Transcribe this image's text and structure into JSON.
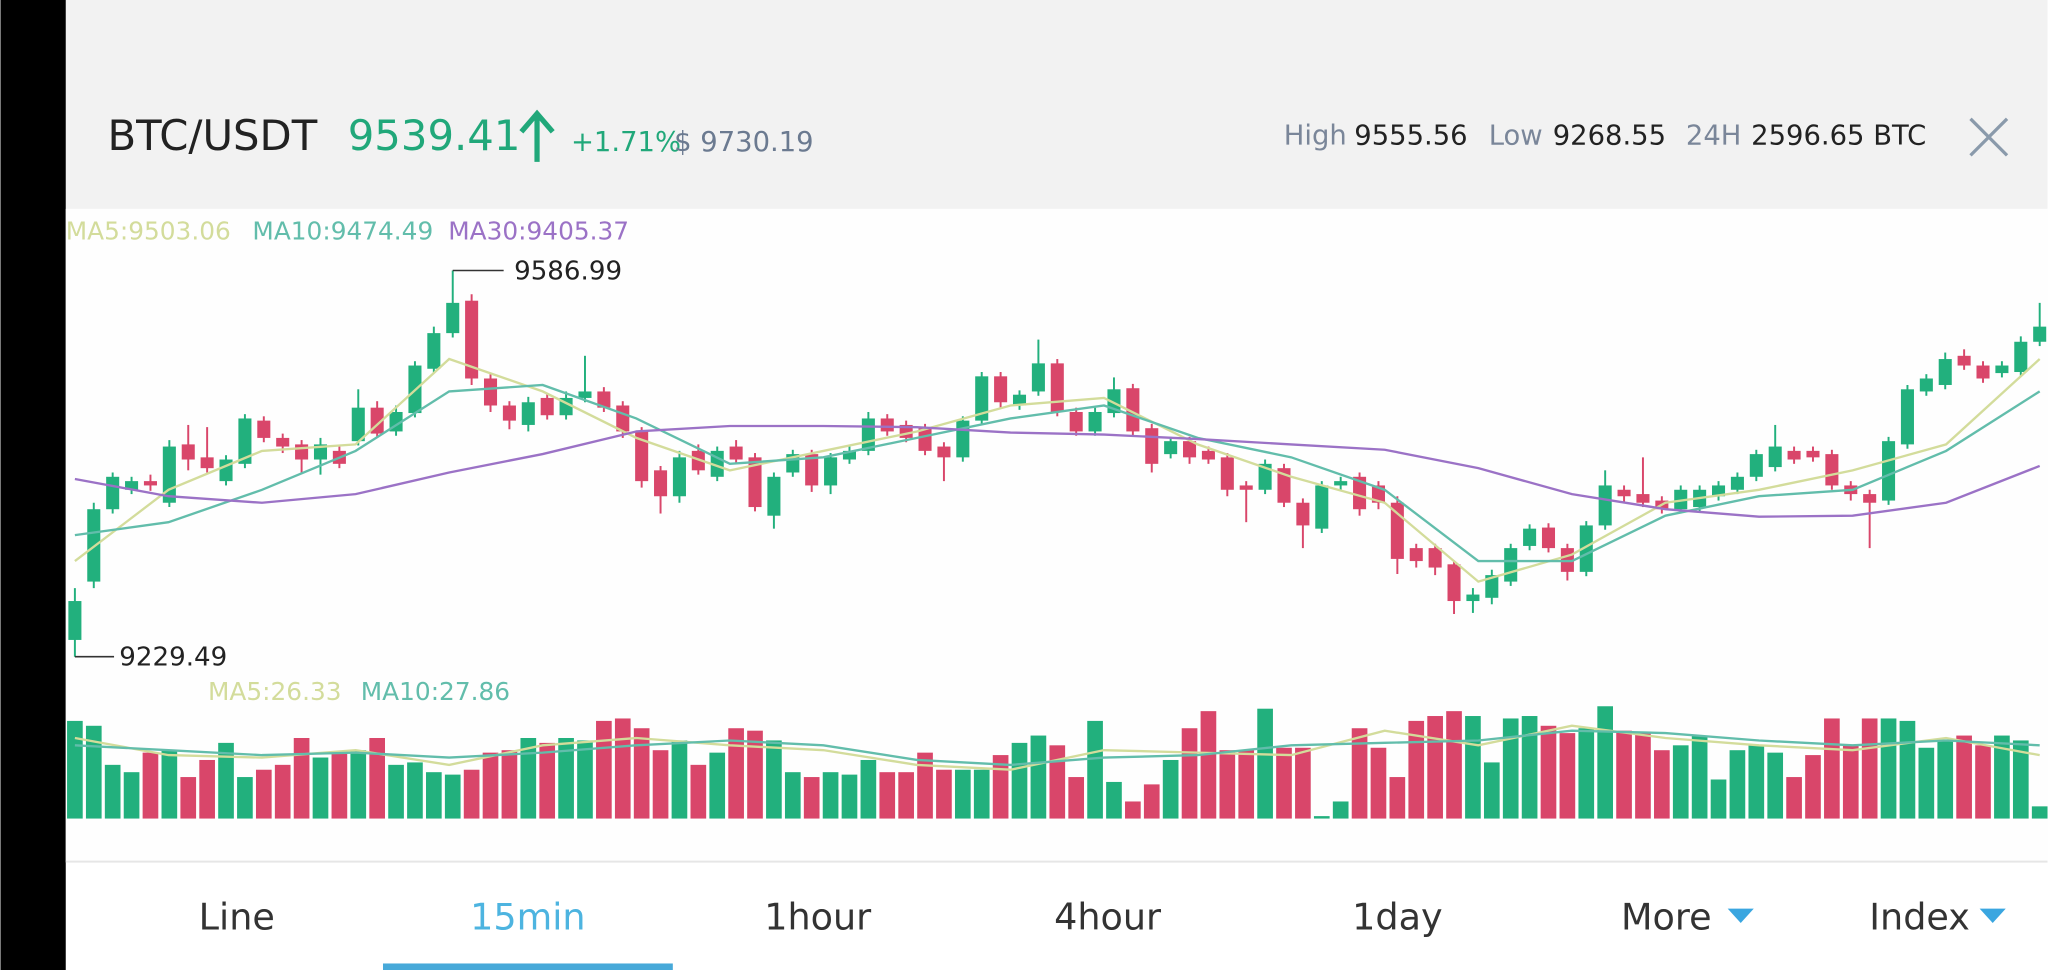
{
  "header": {
    "pair": "BTC/USDT",
    "price": "9539.41",
    "change": "+1.71%",
    "usd": "$ 9730.19",
    "stats": [
      {
        "label": "High",
        "value": "9555.56"
      },
      {
        "label": "Low",
        "value": "9268.55"
      },
      {
        "label": "24H",
        "value": "2596.65 BTC"
      }
    ]
  },
  "chart_data": {
    "type": "candlestick",
    "up_color": "#22b07d",
    "down_color": "#d9466a",
    "ylim": [
      9215,
      9644
    ],
    "candles": [
      [
        9245,
        9293,
        9229.49,
        9281
      ],
      [
        9299,
        9372,
        9293,
        9366
      ],
      [
        9366,
        9400,
        9362,
        9396
      ],
      [
        9384,
        9396,
        9380,
        9392
      ],
      [
        9392,
        9398,
        9383,
        9388
      ],
      [
        9372,
        9430,
        9368,
        9424
      ],
      [
        9426,
        9444,
        9402,
        9412
      ],
      [
        9414,
        9442,
        9400,
        9404
      ],
      [
        9392,
        9416,
        9388,
        9412
      ],
      [
        9408,
        9454,
        9404,
        9450
      ],
      [
        9448,
        9452,
        9428,
        9432
      ],
      [
        9432,
        9436,
        9418,
        9424
      ],
      [
        9426,
        9430,
        9400,
        9412
      ],
      [
        9412,
        9432,
        9398,
        9426
      ],
      [
        9420,
        9424,
        9404,
        9408
      ],
      [
        9429,
        9477,
        9425,
        9460
      ],
      [
        9460,
        9466,
        9432,
        9436
      ],
      [
        9438,
        9462,
        9434,
        9456
      ],
      [
        9455,
        9503,
        9451,
        9499
      ],
      [
        9496,
        9535,
        9492,
        9529
      ],
      [
        9529,
        9586.99,
        9525,
        9557
      ],
      [
        9559,
        9565,
        9481,
        9487
      ],
      [
        9487,
        9491,
        9456,
        9462
      ],
      [
        9462,
        9466,
        9440,
        9448
      ],
      [
        9444,
        9470,
        9438,
        9465
      ],
      [
        9469,
        9473,
        9449,
        9453
      ],
      [
        9453,
        9475,
        9449,
        9469
      ],
      [
        9469,
        9508,
        9465,
        9475
      ],
      [
        9475,
        9479,
        9456,
        9460
      ],
      [
        9462,
        9466,
        9432,
        9438
      ],
      [
        9438,
        9442,
        9386,
        9392
      ],
      [
        9402,
        9406,
        9362,
        9378
      ],
      [
        9378,
        9420,
        9372,
        9414
      ],
      [
        9420,
        9426,
        9398,
        9402
      ],
      [
        9396,
        9424,
        9392,
        9420
      ],
      [
        9424,
        9430,
        9408,
        9412
      ],
      [
        9414,
        9418,
        9364,
        9368
      ],
      [
        9360,
        9400,
        9348,
        9396
      ],
      [
        9400,
        9421,
        9396,
        9417
      ],
      [
        9417,
        9421,
        9382,
        9388
      ],
      [
        9388,
        9418,
        9380,
        9414
      ],
      [
        9412,
        9424,
        9408,
        9420
      ],
      [
        9420,
        9456,
        9416,
        9450
      ],
      [
        9450,
        9454,
        9434,
        9438
      ],
      [
        9444,
        9448,
        9428,
        9432
      ],
      [
        9441,
        9445,
        9416,
        9420
      ],
      [
        9424,
        9428,
        9392,
        9414
      ],
      [
        9414,
        9452,
        9410,
        9448
      ],
      [
        9448,
        9493,
        9444,
        9489
      ],
      [
        9489,
        9493,
        9460,
        9465
      ],
      [
        9462,
        9476,
        9458,
        9472
      ],
      [
        9475,
        9523,
        9471,
        9501
      ],
      [
        9501,
        9505,
        9452,
        9456
      ],
      [
        9456,
        9460,
        9434,
        9438
      ],
      [
        9438,
        9460,
        9434,
        9456
      ],
      [
        9455,
        9488,
        9451,
        9477
      ],
      [
        9478,
        9482,
        9434,
        9438
      ],
      [
        9441,
        9445,
        9400,
        9408
      ],
      [
        9417,
        9433,
        9413,
        9429
      ],
      [
        9429,
        9433,
        9408,
        9414
      ],
      [
        9420,
        9424,
        9408,
        9412
      ],
      [
        9414,
        9418,
        9378,
        9384
      ],
      [
        9388,
        9392,
        9354,
        9384
      ],
      [
        9384,
        9412,
        9380,
        9408
      ],
      [
        9404,
        9408,
        9368,
        9372
      ],
      [
        9372,
        9376,
        9330,
        9351
      ],
      [
        9348,
        9392,
        9344,
        9388
      ],
      [
        9388,
        9396,
        9384,
        9392
      ],
      [
        9396,
        9400,
        9360,
        9366
      ],
      [
        9388,
        9392,
        9366,
        9372
      ],
      [
        9372,
        9378,
        9306,
        9320
      ],
      [
        9330,
        9334,
        9312,
        9318
      ],
      [
        9330,
        9334,
        9305,
        9312
      ],
      [
        9315,
        9318,
        9269,
        9281
      ],
      [
        9281,
        9293,
        9270,
        9287
      ],
      [
        9284,
        9310,
        9278,
        9305
      ],
      [
        9299,
        9334,
        9295,
        9330
      ],
      [
        9332,
        9352,
        9328,
        9348
      ],
      [
        9349,
        9353,
        9326,
        9330
      ],
      [
        9330,
        9334,
        9300,
        9308
      ],
      [
        9308,
        9355,
        9304,
        9351
      ],
      [
        9351,
        9402,
        9347,
        9388
      ],
      [
        9384,
        9388,
        9372,
        9378
      ],
      [
        9380,
        9414,
        9368,
        9372
      ],
      [
        9374,
        9378,
        9362,
        9366
      ],
      [
        9366,
        9388,
        9362,
        9384
      ],
      [
        9368,
        9388,
        9364,
        9384
      ],
      [
        9378,
        9392,
        9374,
        9388
      ],
      [
        9384,
        9400,
        9380,
        9396
      ],
      [
        9396,
        9421,
        9392,
        9417
      ],
      [
        9405,
        9444,
        9401,
        9424
      ],
      [
        9420,
        9424,
        9408,
        9412
      ],
      [
        9420,
        9424,
        9410,
        9414
      ],
      [
        9417,
        9421,
        9384,
        9388
      ],
      [
        9388,
        9392,
        9374,
        9380
      ],
      [
        9380,
        9384,
        9330,
        9372
      ],
      [
        9374,
        9433,
        9370,
        9429
      ],
      [
        9426,
        9481,
        9422,
        9477
      ],
      [
        9475,
        9491,
        9471,
        9487
      ],
      [
        9481,
        9511,
        9477,
        9505
      ],
      [
        9508,
        9514,
        9495,
        9499
      ],
      [
        9499,
        9503,
        9483,
        9487
      ],
      [
        9492,
        9503,
        9488,
        9499
      ],
      [
        9493,
        9526,
        9489,
        9521
      ],
      [
        9521,
        9557,
        9517,
        9535
      ]
    ],
    "series": [
      {
        "name": "MA5:9503.06",
        "color": "#d3dc9b",
        "values": [
          9318,
          9384,
          9420,
          9426,
          9505,
          9475,
          9432,
          9402,
          9420,
          9438,
          9462,
          9469,
          9426,
          9396,
          9372,
          9299,
          9324,
          9372,
          9384,
          9402,
          9426,
          9505
        ]
      },
      {
        "name": "MA10:9474.49",
        "color": "#62bdab",
        "values": [
          9342,
          9354,
          9384,
          9420,
          9475,
          9481,
          9450,
          9408,
          9414,
          9432,
          9450,
          9462,
          9432,
          9414,
          9384,
          9318,
          9318,
          9360,
          9378,
          9384,
          9420,
          9475
        ]
      },
      {
        "name": "MA30:9405.37",
        "color": "#9b72c6",
        "values": [
          9394,
          9378,
          9372,
          9380,
          9400,
          9417,
          9438,
          9443,
          9443,
          9442,
          9437,
          9435,
          9431,
          9426,
          9421,
          9404,
          9380,
          9366,
          9359,
          9360,
          9372,
          9406
        ]
      }
    ],
    "volume": {
      "ylim": [
        0,
        50
      ],
      "values": [
        40,
        38,
        22,
        19,
        27,
        28,
        17,
        24,
        31,
        17,
        20,
        22,
        33,
        25,
        27,
        28,
        33,
        22,
        23,
        19,
        18,
        20,
        27,
        28,
        33,
        31,
        33,
        32,
        40,
        41,
        37,
        28,
        32,
        22,
        27,
        37,
        36,
        32,
        19,
        17,
        19,
        18,
        24,
        19,
        19,
        27,
        20,
        20,
        20,
        26,
        31,
        34,
        30,
        17,
        40,
        15,
        7,
        14,
        24,
        37,
        44,
        28,
        28,
        45,
        29,
        29,
        1,
        7,
        37,
        29,
        17,
        40,
        42,
        44,
        42,
        23,
        41,
        42,
        38,
        35,
        37,
        46,
        36,
        35,
        28,
        30,
        34,
        16,
        28,
        30,
        27,
        17,
        26,
        41,
        30,
        41,
        41,
        40,
        29,
        32,
        34,
        30,
        34,
        32,
        5
      ],
      "series": [
        {
          "name": "MA5:26.33",
          "color": "#d3dc9b",
          "values": [
            33,
            26,
            25,
            28,
            22,
            30,
            33,
            30,
            28,
            22,
            20,
            28,
            27,
            26,
            36,
            30,
            38,
            33,
            30,
            28,
            33,
            26
          ]
        },
        {
          "name": "MA10:27.86",
          "color": "#62bdab",
          "values": [
            30,
            28,
            26,
            27,
            25,
            27,
            30,
            32,
            30,
            24,
            22,
            25,
            26,
            30,
            31,
            32,
            36,
            35,
            32,
            30,
            32,
            30
          ]
        }
      ]
    }
  },
  "tabs": [
    "Line",
    "15min",
    "1hour",
    "4hour",
    "1day",
    "More",
    "Index"
  ]
}
